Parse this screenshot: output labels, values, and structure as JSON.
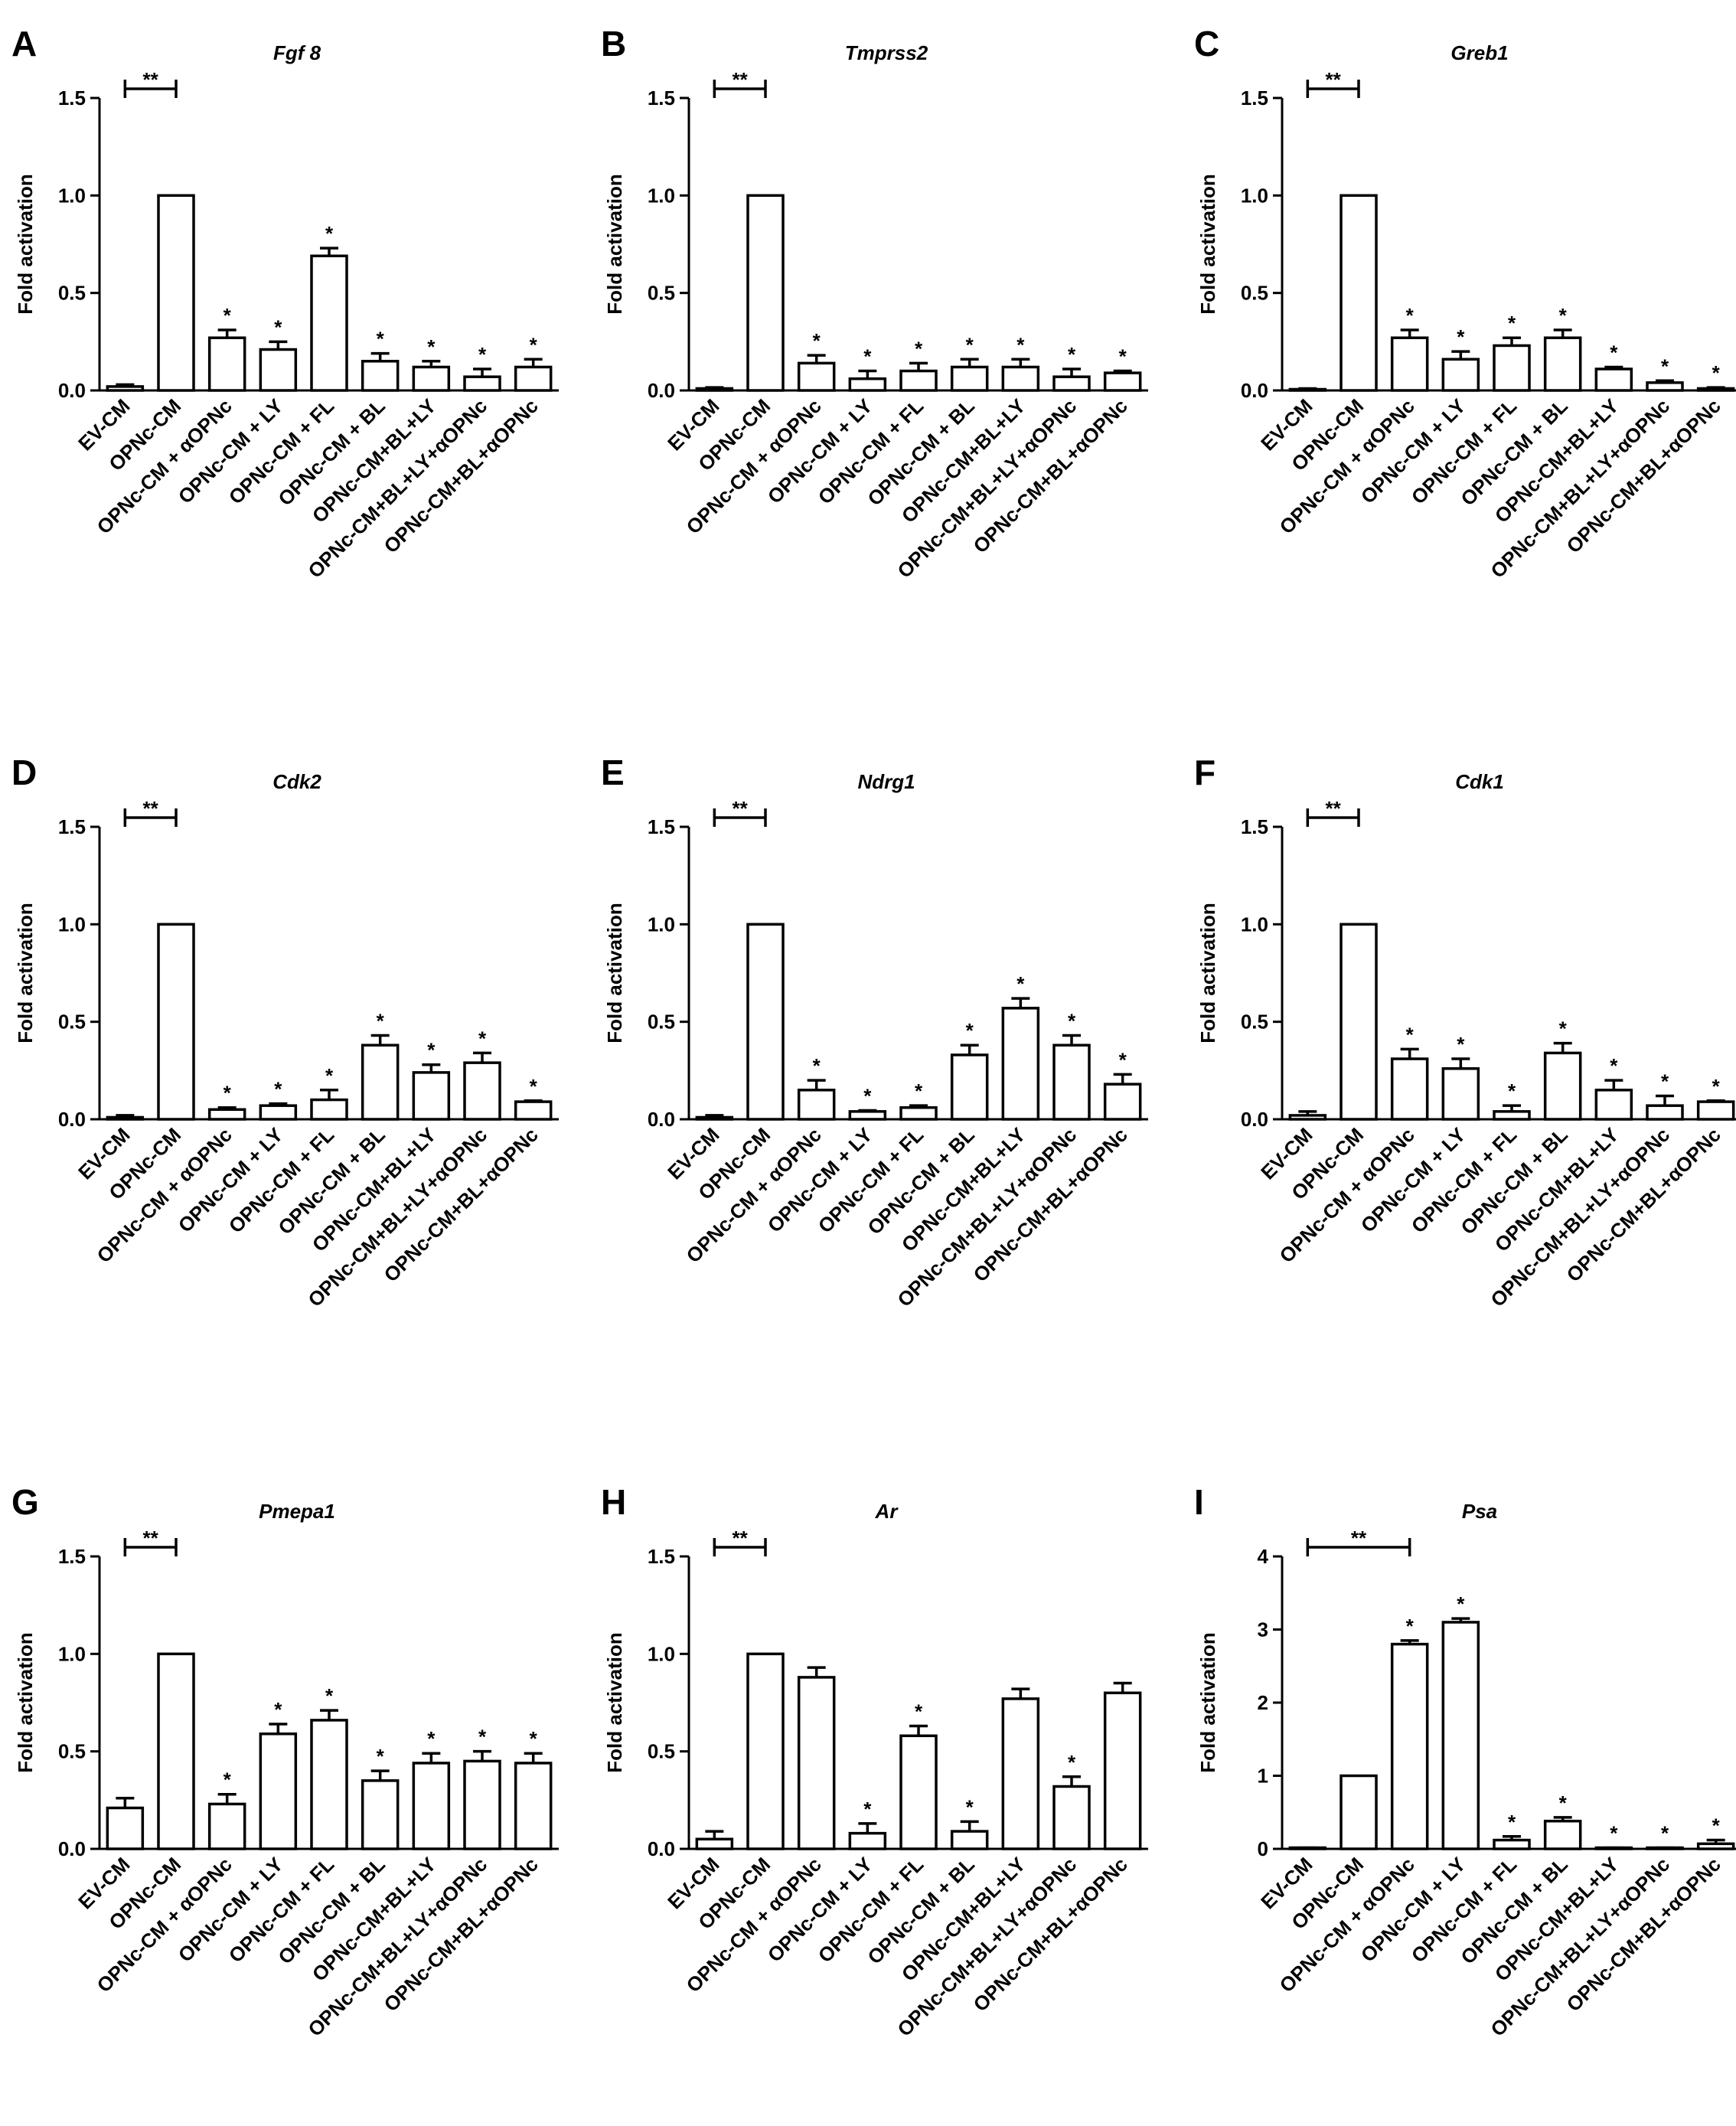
{
  "figure": {
    "categories": [
      "EV-CM",
      "OPNc-CM",
      "OPNc-CM + αOPNc",
      "OPNc-CM + LY",
      "OPNc-CM + FL",
      "OPNc-CM + BL",
      "OPNc-CM+BL+LY",
      "OPNc-CM+BL+LY+αOPNc",
      "OPNc-CM+BL+αOPNc"
    ],
    "ylabel": "Fold activation",
    "bracket_label": "**",
    "sig_label": "*",
    "colors": {
      "bar_fill": "#ffffff",
      "bar_stroke": "#000000",
      "axis": "#000000"
    }
  },
  "chart_data": [
    {
      "panel": "A",
      "type": "bar",
      "title": "Fgf 8",
      "ylabel": "Fold activation",
      "ylim": [
        0,
        1.5
      ],
      "yticks": [
        "0.0",
        "0.5",
        "1.0",
        "1.5"
      ],
      "categories": [
        "EV-CM",
        "OPNc-CM",
        "OPNc-CM + αOPNc",
        "OPNc-CM + LY",
        "OPNc-CM + FL",
        "OPNc-CM + BL",
        "OPNc-CM+BL+LY",
        "OPNc-CM+BL+LY+αOPNc",
        "OPNc-CM+BL+αOPNc"
      ],
      "values": [
        0.02,
        1.0,
        0.27,
        0.21,
        0.69,
        0.15,
        0.12,
        0.07,
        0.12
      ],
      "errors": [
        0.01,
        0.0,
        0.04,
        0.04,
        0.04,
        0.04,
        0.03,
        0.04,
        0.04
      ],
      "significant": [
        false,
        false,
        true,
        true,
        true,
        true,
        true,
        true,
        true
      ],
      "bracket": {
        "from": 0,
        "to": 1,
        "label": "**"
      }
    },
    {
      "panel": "B",
      "type": "bar",
      "title": "Tmprss2",
      "ylabel": "Fold activation",
      "ylim": [
        0,
        1.5
      ],
      "yticks": [
        "0.0",
        "0.5",
        "1.0",
        "1.5"
      ],
      "categories": [
        "EV-CM",
        "OPNc-CM",
        "OPNc-CM + αOPNc",
        "OPNc-CM + LY",
        "OPNc-CM + FL",
        "OPNc-CM + BL",
        "OPNc-CM+BL+LY",
        "OPNc-CM+BL+LY+αOPNc",
        "OPNc-CM+BL+αOPNc"
      ],
      "values": [
        0.01,
        1.0,
        0.14,
        0.06,
        0.1,
        0.12,
        0.12,
        0.07,
        0.09
      ],
      "errors": [
        0.005,
        0.0,
        0.04,
        0.04,
        0.04,
        0.04,
        0.04,
        0.04,
        0.01
      ],
      "significant": [
        false,
        false,
        true,
        true,
        true,
        true,
        true,
        true,
        true
      ],
      "bracket": {
        "from": 0,
        "to": 1,
        "label": "**"
      }
    },
    {
      "panel": "C",
      "type": "bar",
      "title": "Greb1",
      "ylabel": "Fold activation",
      "ylim": [
        0,
        1.5
      ],
      "yticks": [
        "0.0",
        "0.5",
        "1.0",
        "1.5"
      ],
      "categories": [
        "EV-CM",
        "OPNc-CM",
        "OPNc-CM + αOPNc",
        "OPNc-CM + LY",
        "OPNc-CM + FL",
        "OPNc-CM + BL",
        "OPNc-CM+BL+LY",
        "OPNc-CM+BL+LY+αOPNc",
        "OPNc-CM+BL+αOPNc"
      ],
      "values": [
        0.005,
        1.0,
        0.27,
        0.16,
        0.23,
        0.27,
        0.11,
        0.04,
        0.01
      ],
      "errors": [
        0.005,
        0.0,
        0.04,
        0.04,
        0.04,
        0.04,
        0.01,
        0.01,
        0.005
      ],
      "significant": [
        false,
        false,
        true,
        true,
        true,
        true,
        true,
        true,
        true
      ],
      "bracket": {
        "from": 0,
        "to": 1,
        "label": "**"
      }
    },
    {
      "panel": "D",
      "type": "bar",
      "title": "Cdk2",
      "ylabel": "Fold activation",
      "ylim": [
        0,
        1.5
      ],
      "yticks": [
        "0.0",
        "0.5",
        "1.0",
        "1.5"
      ],
      "categories": [
        "EV-CM",
        "OPNc-CM",
        "OPNc-CM + αOPNc",
        "OPNc-CM + LY",
        "OPNc-CM + FL",
        "OPNc-CM + BL",
        "OPNc-CM+BL+LY",
        "OPNc-CM+BL+LY+αOPNc",
        "OPNc-CM+BL+αOPNc"
      ],
      "values": [
        0.01,
        1.0,
        0.05,
        0.07,
        0.1,
        0.38,
        0.24,
        0.29,
        0.09
      ],
      "errors": [
        0.01,
        0.0,
        0.01,
        0.01,
        0.05,
        0.05,
        0.04,
        0.05,
        0.005
      ],
      "significant": [
        false,
        false,
        true,
        true,
        true,
        true,
        true,
        true,
        true
      ],
      "bracket": {
        "from": 0,
        "to": 1,
        "label": "**"
      }
    },
    {
      "panel": "E",
      "type": "bar",
      "title": "Ndrg1",
      "ylabel": "Fold activation",
      "ylim": [
        0,
        1.5
      ],
      "yticks": [
        "0.0",
        "0.5",
        "1.0",
        "1.5"
      ],
      "categories": [
        "EV-CM",
        "OPNc-CM",
        "OPNc-CM + αOPNc",
        "OPNc-CM + LY",
        "OPNc-CM + FL",
        "OPNc-CM + BL",
        "OPNc-CM+BL+LY",
        "OPNc-CM+BL+LY+αOPNc",
        "OPNc-CM+BL+αOPNc"
      ],
      "values": [
        0.01,
        1.0,
        0.15,
        0.04,
        0.06,
        0.33,
        0.57,
        0.38,
        0.18
      ],
      "errors": [
        0.01,
        0.0,
        0.05,
        0.005,
        0.01,
        0.05,
        0.05,
        0.05,
        0.05
      ],
      "significant": [
        false,
        false,
        true,
        true,
        true,
        true,
        true,
        true,
        true
      ],
      "bracket": {
        "from": 0,
        "to": 1,
        "label": "**"
      }
    },
    {
      "panel": "F",
      "type": "bar",
      "title": "Cdk1",
      "ylabel": "Fold activation",
      "ylim": [
        0,
        1.5
      ],
      "yticks": [
        "0.0",
        "0.5",
        "1.0",
        "1.5"
      ],
      "categories": [
        "EV-CM",
        "OPNc-CM",
        "OPNc-CM + αOPNc",
        "OPNc-CM + LY",
        "OPNc-CM + FL",
        "OPNc-CM + BL",
        "OPNc-CM+BL+LY",
        "OPNc-CM+BL+LY+αOPNc",
        "OPNc-CM+BL+αOPNc"
      ],
      "values": [
        0.02,
        1.0,
        0.31,
        0.26,
        0.04,
        0.34,
        0.15,
        0.07,
        0.09
      ],
      "errors": [
        0.02,
        0.0,
        0.05,
        0.05,
        0.03,
        0.05,
        0.05,
        0.05,
        0.005
      ],
      "significant": [
        false,
        false,
        true,
        true,
        true,
        true,
        true,
        true,
        true
      ],
      "bracket": {
        "from": 0,
        "to": 1,
        "label": "**"
      }
    },
    {
      "panel": "G",
      "type": "bar",
      "title": "Pmepa1",
      "ylabel": "Fold activation",
      "ylim": [
        0,
        1.5
      ],
      "yticks": [
        "0.0",
        "0.5",
        "1.0",
        "1.5"
      ],
      "categories": [
        "EV-CM",
        "OPNc-CM",
        "OPNc-CM + αOPNc",
        "OPNc-CM + LY",
        "OPNc-CM + FL",
        "OPNc-CM + BL",
        "OPNc-CM+BL+LY",
        "OPNc-CM+BL+LY+αOPNc",
        "OPNc-CM+BL+αOPNc"
      ],
      "values": [
        0.21,
        1.0,
        0.23,
        0.59,
        0.66,
        0.35,
        0.44,
        0.45,
        0.44
      ],
      "errors": [
        0.05,
        0.0,
        0.05,
        0.05,
        0.05,
        0.05,
        0.05,
        0.05,
        0.05
      ],
      "significant": [
        false,
        false,
        true,
        true,
        true,
        true,
        true,
        true,
        true
      ],
      "bracket": {
        "from": 0,
        "to": 1,
        "label": "**"
      }
    },
    {
      "panel": "H",
      "type": "bar",
      "title": "Ar",
      "ylabel": "Fold activation",
      "ylim": [
        0,
        1.5
      ],
      "yticks": [
        "0.0",
        "0.5",
        "1.0",
        "1.5"
      ],
      "categories": [
        "EV-CM",
        "OPNc-CM",
        "OPNc-CM + αOPNc",
        "OPNc-CM + LY",
        "OPNc-CM + FL",
        "OPNc-CM + BL",
        "OPNc-CM+BL+LY",
        "OPNc-CM+BL+LY+αOPNc",
        "OPNc-CM+BL+αOPNc"
      ],
      "values": [
        0.05,
        1.0,
        0.88,
        0.08,
        0.58,
        0.09,
        0.77,
        0.32,
        0.8
      ],
      "errors": [
        0.04,
        0.0,
        0.05,
        0.05,
        0.05,
        0.05,
        0.05,
        0.05,
        0.05
      ],
      "significant": [
        false,
        false,
        false,
        true,
        true,
        true,
        false,
        true,
        false
      ],
      "bracket": {
        "from": 0,
        "to": 1,
        "label": "**"
      }
    },
    {
      "panel": "I",
      "type": "bar",
      "title": "Psa",
      "ylabel": "Fold activation",
      "ylim": [
        0,
        4
      ],
      "yticks": [
        "0",
        "1",
        "2",
        "3",
        "4"
      ],
      "categories": [
        "EV-CM",
        "OPNc-CM",
        "OPNc-CM + αOPNc",
        "OPNc-CM + LY",
        "OPNc-CM + FL",
        "OPNc-CM + BL",
        "OPNc-CM+BL+LY",
        "OPNc-CM+BL+LY+αOPNc",
        "OPNc-CM+BL+αOPNc"
      ],
      "values": [
        0.01,
        1.0,
        2.8,
        3.1,
        0.12,
        0.38,
        0.01,
        0.01,
        0.07
      ],
      "errors": [
        0.005,
        0.0,
        0.05,
        0.05,
        0.05,
        0.05,
        0.005,
        0.005,
        0.05
      ],
      "significant": [
        false,
        false,
        true,
        true,
        true,
        true,
        true,
        true,
        true
      ],
      "bracket": {
        "from": 0,
        "to": 2,
        "label": "**"
      }
    }
  ]
}
